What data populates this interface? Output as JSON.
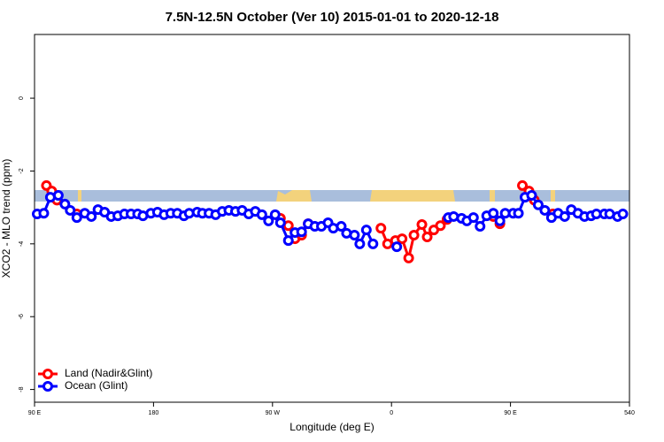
{
  "chart_data": {
    "type": "line",
    "title": "7.5N-12.5N October (Ver 10)   2015-01-01 to 2020-12-18",
    "x_label": "Longitude (deg E)",
    "y_label": "XCO2 - MLO trend (ppm)",
    "xlim": [
      90,
      540
    ],
    "ylim": [
      -8.35,
      1.75
    ],
    "xticks": [
      {
        "value": 90,
        "label": "90 E"
      },
      180,
      {
        "value": 270,
        "label": "90 W"
      },
      {
        "value": 360,
        "label": "0"
      },
      {
        "value": 450,
        "label": "90 E"
      },
      540
    ],
    "yticks": [
      -8,
      -6,
      -4,
      -2,
      0
    ],
    "legend": "bottom-left",
    "series": [
      {
        "name": "Land (Nadir&Glint)",
        "color": "#ff0000",
        "x": [
          99,
          103,
          107,
          122,
          200,
          276,
          282,
          287,
          292,
          297,
          330,
          352,
          357,
          363,
          368,
          373,
          377,
          383,
          387,
          392,
          397,
          402,
          420,
          437,
          442,
          450,
          459,
          464,
          468,
          482
        ],
        "values": [
          -2.4,
          -2.55,
          -2.8,
          -3.18,
          null,
          -3.3,
          -3.5,
          -3.86,
          -3.76,
          -3.45,
          null,
          -3.57,
          -4.0,
          -3.91,
          -3.86,
          -4.39,
          -3.76,
          -3.47,
          -3.81,
          -3.62,
          -3.5,
          -3.33,
          null,
          -3.25,
          -3.45,
          null,
          -2.4,
          -2.55,
          -2.8,
          -3.18
        ]
      },
      {
        "name": "Ocean (Glint)",
        "color": "#0000ff",
        "x": [
          92,
          97,
          102,
          108,
          113,
          117,
          122,
          128,
          133,
          138,
          143,
          148,
          153,
          158,
          163,
          168,
          172,
          178,
          183,
          188,
          193,
          198,
          203,
          207,
          213,
          217,
          222,
          227,
          232,
          237,
          242,
          247,
          252,
          257,
          262,
          267,
          272,
          276,
          282,
          287,
          292,
          297,
          302,
          307,
          312,
          316,
          322,
          326,
          332,
          336,
          341,
          346,
          355,
          364,
          380,
          403,
          407,
          413,
          417,
          422,
          427,
          432,
          437,
          442,
          446,
          452,
          456,
          461,
          466,
          471,
          476,
          481,
          486,
          491,
          496,
          501,
          506,
          511,
          515,
          521,
          525,
          531,
          535
        ],
        "values": [
          -3.18,
          -3.16,
          -2.72,
          -2.67,
          -2.91,
          -3.08,
          -3.28,
          -3.16,
          -3.25,
          -3.06,
          -3.13,
          -3.25,
          -3.23,
          -3.18,
          -3.18,
          -3.18,
          -3.23,
          -3.16,
          -3.13,
          -3.2,
          -3.16,
          -3.16,
          -3.23,
          -3.16,
          -3.13,
          -3.16,
          -3.16,
          -3.2,
          -3.11,
          -3.08,
          -3.11,
          -3.08,
          -3.18,
          -3.11,
          -3.2,
          -3.37,
          -3.2,
          -3.42,
          -3.91,
          -3.69,
          -3.67,
          -3.45,
          -3.52,
          -3.52,
          -3.42,
          -3.57,
          -3.52,
          -3.71,
          -3.76,
          -4.0,
          -3.62,
          -4.0,
          null,
          -4.08,
          null,
          -3.28,
          -3.25,
          -3.3,
          -3.37,
          -3.28,
          -3.52,
          -3.23,
          -3.16,
          -3.37,
          -3.16,
          -3.16,
          -3.16,
          -2.72,
          -2.67,
          -2.93,
          -3.08,
          -3.28,
          -3.16,
          -3.25,
          -3.06,
          -3.16,
          -3.25,
          -3.23,
          -3.18,
          -3.18,
          -3.18,
          -3.25,
          -3.18
        ]
      }
    ]
  }
}
